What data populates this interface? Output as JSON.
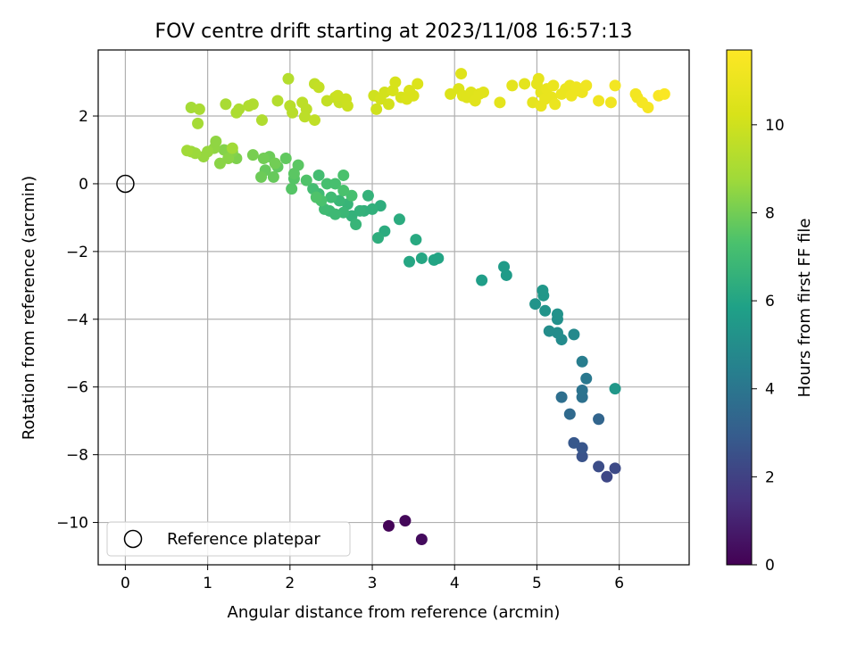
{
  "chart_data": {
    "type": "scatter",
    "title": "FOV centre drift starting at 2023/11/08 16:57:13",
    "xlabel": "Angular distance from reference (arcmin)",
    "ylabel": "Rotation from reference (arcmin)",
    "xlim": [
      -0.33,
      6.85
    ],
    "ylim": [
      -11.25,
      3.95
    ],
    "xticks": [
      0,
      1,
      2,
      3,
      4,
      5,
      6
    ],
    "yticks": [
      -10,
      -8,
      -6,
      -4,
      -2,
      0,
      2
    ],
    "xtick_labels": [
      "0",
      "1",
      "2",
      "3",
      "4",
      "5",
      "6"
    ],
    "ytick_labels": [
      "−10",
      "−8",
      "−6",
      "−4",
      "−2",
      "0",
      "2"
    ],
    "grid": true,
    "legend": {
      "location": "lower-left",
      "entries": [
        {
          "label": "Reference platepar",
          "marker": "open-circle"
        }
      ]
    },
    "reference_point": {
      "x": 0,
      "y": 0,
      "label": "Reference platepar"
    },
    "colorbar": {
      "label": "Hours from first FF file",
      "colormap": "viridis",
      "range": [
        0,
        11.7
      ],
      "ticks": [
        0,
        2,
        4,
        6,
        8,
        10
      ],
      "tick_labels": [
        "0",
        "2",
        "4",
        "6",
        "8",
        "10"
      ]
    },
    "series": [
      {
        "points": [
          [
            3.2,
            -10.1,
            0.1
          ],
          [
            3.4,
            -9.95,
            0.2
          ],
          [
            3.6,
            -10.5,
            0.3
          ],
          [
            5.85,
            -8.65,
            2.2
          ],
          [
            5.95,
            -8.4,
            2.3
          ],
          [
            5.75,
            -8.35,
            2.4
          ],
          [
            5.55,
            -8.05,
            2.6
          ],
          [
            5.55,
            -7.8,
            2.7
          ],
          [
            5.45,
            -7.65,
            2.8
          ],
          [
            5.75,
            -6.95,
            3.3
          ],
          [
            5.4,
            -6.8,
            3.5
          ],
          [
            5.3,
            -6.3,
            3.7
          ],
          [
            5.55,
            -6.3,
            3.8
          ],
          [
            5.55,
            -6.1,
            3.9
          ],
          [
            5.6,
            -5.75,
            4.1
          ],
          [
            5.55,
            -5.25,
            4.3
          ],
          [
            5.95,
            -6.05,
            5.4
          ],
          [
            5.45,
            -4.45,
            4.8
          ],
          [
            5.3,
            -4.6,
            4.9
          ],
          [
            5.25,
            -4.4,
            5.0
          ],
          [
            5.15,
            -4.35,
            5.0
          ],
          [
            5.25,
            -4.0,
            5.1
          ],
          [
            5.25,
            -3.85,
            5.2
          ],
          [
            5.1,
            -3.75,
            5.3
          ],
          [
            4.98,
            -3.55,
            5.3
          ],
          [
            5.08,
            -3.3,
            5.4
          ],
          [
            5.07,
            -3.15,
            5.4
          ],
          [
            4.63,
            -2.7,
            5.6
          ],
          [
            4.6,
            -2.45,
            5.6
          ],
          [
            4.33,
            -2.85,
            5.7
          ],
          [
            3.8,
            -2.2,
            6.0
          ],
          [
            3.75,
            -2.25,
            6.0
          ],
          [
            3.6,
            -2.2,
            6.1
          ],
          [
            3.45,
            -2.3,
            6.1
          ],
          [
            3.53,
            -1.65,
            6.2
          ],
          [
            3.33,
            -1.05,
            6.3
          ],
          [
            3.15,
            -1.4,
            6.3
          ],
          [
            3.07,
            -1.6,
            6.4
          ],
          [
            3.1,
            -0.65,
            6.4
          ],
          [
            3.0,
            -0.75,
            6.5
          ],
          [
            2.9,
            -0.8,
            6.5
          ],
          [
            2.95,
            -0.35,
            6.6
          ],
          [
            2.75,
            -0.95,
            6.6
          ],
          [
            2.85,
            -0.8,
            6.6
          ],
          [
            2.8,
            -1.2,
            6.7
          ],
          [
            2.7,
            -0.6,
            6.7
          ],
          [
            2.6,
            -0.5,
            6.8
          ],
          [
            2.65,
            -0.85,
            6.8
          ],
          [
            2.55,
            -0.9,
            6.9
          ],
          [
            2.48,
            -0.8,
            6.9
          ],
          [
            2.42,
            -0.75,
            7.0
          ],
          [
            2.5,
            -0.4,
            7.0
          ],
          [
            2.35,
            -0.3,
            7.0
          ],
          [
            2.28,
            -0.15,
            7.1
          ],
          [
            2.35,
            0.25,
            7.1
          ],
          [
            2.45,
            0.0,
            7.2
          ],
          [
            2.55,
            0.0,
            7.2
          ],
          [
            2.75,
            -0.35,
            7.2
          ],
          [
            2.65,
            -0.2,
            7.3
          ],
          [
            2.65,
            0.25,
            7.3
          ],
          [
            2.38,
            -0.5,
            7.3
          ],
          [
            2.32,
            -0.4,
            7.4
          ],
          [
            2.2,
            0.1,
            7.4
          ],
          [
            2.05,
            0.15,
            7.5
          ],
          [
            2.02,
            -0.15,
            7.5
          ],
          [
            2.05,
            0.3,
            7.6
          ],
          [
            2.1,
            0.55,
            7.6
          ],
          [
            1.85,
            0.5,
            7.7
          ],
          [
            1.95,
            0.75,
            7.7
          ],
          [
            1.8,
            0.2,
            7.8
          ],
          [
            1.7,
            0.4,
            7.8
          ],
          [
            1.65,
            0.2,
            7.9
          ],
          [
            1.75,
            0.8,
            7.9
          ],
          [
            1.82,
            0.6,
            8.0
          ],
          [
            1.68,
            0.75,
            8.0
          ],
          [
            1.55,
            0.85,
            8.1
          ],
          [
            1.35,
            0.75,
            8.2
          ],
          [
            1.3,
            0.95,
            8.3
          ],
          [
            1.2,
            1.0,
            8.3
          ],
          [
            1.25,
            0.75,
            8.4
          ],
          [
            1.15,
            0.6,
            8.4
          ],
          [
            1.08,
            1.05,
            8.5
          ],
          [
            1.1,
            1.25,
            8.5
          ],
          [
            1.0,
            0.95,
            8.6
          ],
          [
            0.95,
            0.8,
            8.6
          ],
          [
            0.85,
            0.9,
            8.7
          ],
          [
            0.8,
            0.95,
            8.7
          ],
          [
            0.75,
            0.98,
            8.8
          ],
          [
            1.3,
            1.05,
            8.8
          ],
          [
            0.8,
            2.25,
            8.9
          ],
          [
            0.88,
            1.78,
            8.9
          ],
          [
            0.9,
            2.2,
            9.0
          ],
          [
            1.22,
            2.35,
            9.0
          ],
          [
            1.38,
            2.2,
            9.1
          ],
          [
            1.35,
            2.1,
            9.1
          ],
          [
            1.5,
            2.3,
            9.2
          ],
          [
            1.55,
            2.35,
            9.2
          ],
          [
            1.66,
            1.88,
            9.2
          ],
          [
            1.85,
            2.45,
            9.3
          ],
          [
            1.98,
            3.1,
            9.3
          ],
          [
            2.0,
            2.3,
            9.4
          ],
          [
            2.03,
            2.1,
            9.4
          ],
          [
            2.15,
            2.4,
            9.5
          ],
          [
            2.2,
            2.2,
            9.5
          ],
          [
            2.18,
            1.98,
            9.5
          ],
          [
            2.3,
            2.95,
            9.6
          ],
          [
            2.3,
            1.88,
            9.6
          ],
          [
            2.35,
            2.85,
            9.7
          ],
          [
            2.45,
            2.45,
            9.7
          ],
          [
            2.55,
            2.55,
            9.8
          ],
          [
            2.6,
            2.4,
            9.8
          ],
          [
            2.68,
            2.5,
            9.9
          ],
          [
            2.7,
            2.3,
            9.9
          ],
          [
            2.58,
            2.6,
            9.9
          ],
          [
            3.02,
            2.6,
            10.0
          ],
          [
            3.05,
            2.2,
            10.0
          ],
          [
            3.1,
            2.5,
            10.1
          ],
          [
            3.15,
            2.7,
            10.1
          ],
          [
            3.2,
            2.35,
            10.1
          ],
          [
            3.25,
            2.75,
            10.2
          ],
          [
            3.28,
            3.0,
            10.2
          ],
          [
            3.35,
            2.55,
            10.2
          ],
          [
            3.42,
            2.5,
            10.3
          ],
          [
            3.45,
            2.75,
            10.3
          ],
          [
            3.5,
            2.6,
            10.3
          ],
          [
            3.55,
            2.95,
            10.4
          ],
          [
            3.95,
            2.65,
            10.4
          ],
          [
            4.05,
            2.8,
            10.4
          ],
          [
            4.1,
            2.6,
            10.5
          ],
          [
            4.08,
            3.25,
            10.5
          ],
          [
            4.15,
            2.55,
            10.5
          ],
          [
            4.2,
            2.7,
            10.5
          ],
          [
            4.25,
            2.45,
            10.6
          ],
          [
            4.3,
            2.65,
            10.6
          ],
          [
            4.35,
            2.7,
            10.6
          ],
          [
            4.55,
            2.4,
            10.7
          ],
          [
            4.7,
            2.9,
            10.7
          ],
          [
            4.85,
            2.95,
            10.7
          ],
          [
            4.95,
            2.4,
            10.8
          ],
          [
            5.0,
            2.95,
            10.8
          ],
          [
            5.02,
            3.1,
            10.8
          ],
          [
            5.05,
            2.7,
            10.8
          ],
          [
            5.05,
            2.3,
            10.9
          ],
          [
            5.1,
            2.5,
            10.9
          ],
          [
            5.12,
            2.8,
            10.9
          ],
          [
            5.18,
            2.55,
            10.9
          ],
          [
            5.2,
            2.9,
            11.0
          ],
          [
            5.22,
            2.35,
            11.0
          ],
          [
            5.3,
            2.65,
            11.0
          ],
          [
            5.35,
            2.8,
            11.0
          ],
          [
            5.4,
            2.9,
            11.0
          ],
          [
            5.42,
            2.6,
            11.1
          ],
          [
            5.48,
            2.85,
            11.1
          ],
          [
            5.5,
            2.75,
            11.1
          ],
          [
            5.55,
            2.7,
            11.1
          ],
          [
            5.6,
            2.9,
            11.2
          ],
          [
            5.75,
            2.45,
            11.2
          ],
          [
            5.9,
            2.4,
            11.2
          ],
          [
            5.95,
            2.9,
            11.3
          ],
          [
            6.2,
            2.65,
            11.3
          ],
          [
            6.22,
            2.55,
            11.3
          ],
          [
            6.28,
            2.4,
            11.4
          ],
          [
            6.35,
            2.25,
            11.4
          ],
          [
            6.48,
            2.6,
            11.5
          ],
          [
            6.55,
            2.65,
            11.6
          ]
        ]
      }
    ]
  }
}
